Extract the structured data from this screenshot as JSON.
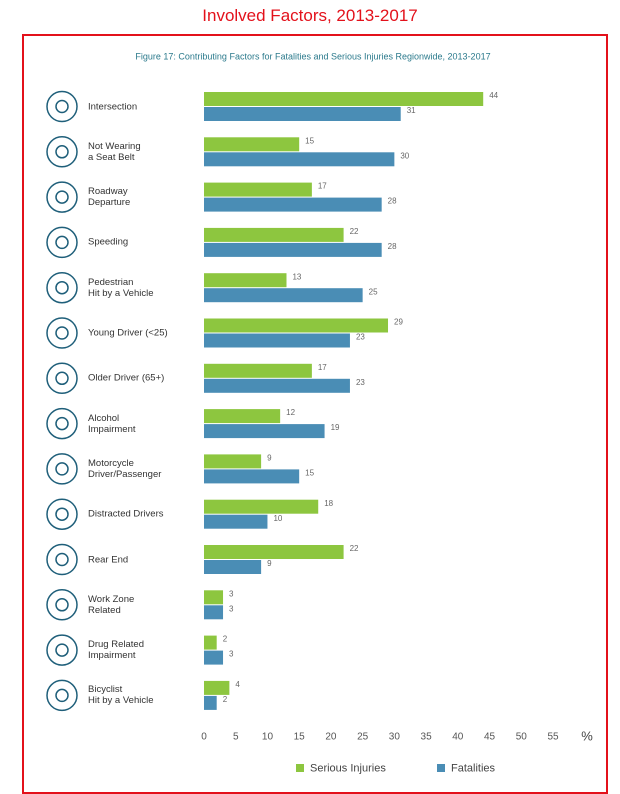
{
  "header": {
    "title": "Involved Factors, 2013-2017"
  },
  "chart_data": {
    "type": "bar",
    "orientation": "horizontal",
    "title": "Figure 17: Contributing Factors for Fatalities and Serious Injuries Regionwide, 2013-2017",
    "categories": [
      "Intersection",
      "Not Wearing\na Seat Belt",
      "Roadway\nDeparture",
      "Speeding",
      "Pedestrian\nHit by a Vehicle",
      "Young Driver (<25)",
      "Older Driver (65+)",
      "Alcohol\nImpairment",
      "Motorcycle\nDriver/Passenger",
      "Distracted Drivers",
      "Rear End",
      "Work Zone\nRelated",
      "Drug Related\nImpairment",
      "Bicyclist\nHit by a Vehicle"
    ],
    "series": [
      {
        "name": "Serious Injuries",
        "color": "#8dc63f",
        "values": [
          44,
          15,
          17,
          22,
          13,
          29,
          17,
          12,
          9,
          18,
          22,
          3,
          2,
          4
        ]
      },
      {
        "name": "Fatalities",
        "color": "#4a8db5",
        "values": [
          31,
          30,
          28,
          28,
          25,
          23,
          23,
          19,
          15,
          10,
          9,
          3,
          3,
          2
        ]
      }
    ],
    "xlabel": "%",
    "xlim": [
      0,
      55
    ],
    "xticks": [
      0,
      5,
      10,
      15,
      20,
      25,
      30,
      35,
      40,
      45,
      50,
      55
    ],
    "grid": false,
    "legend": "bottom"
  }
}
